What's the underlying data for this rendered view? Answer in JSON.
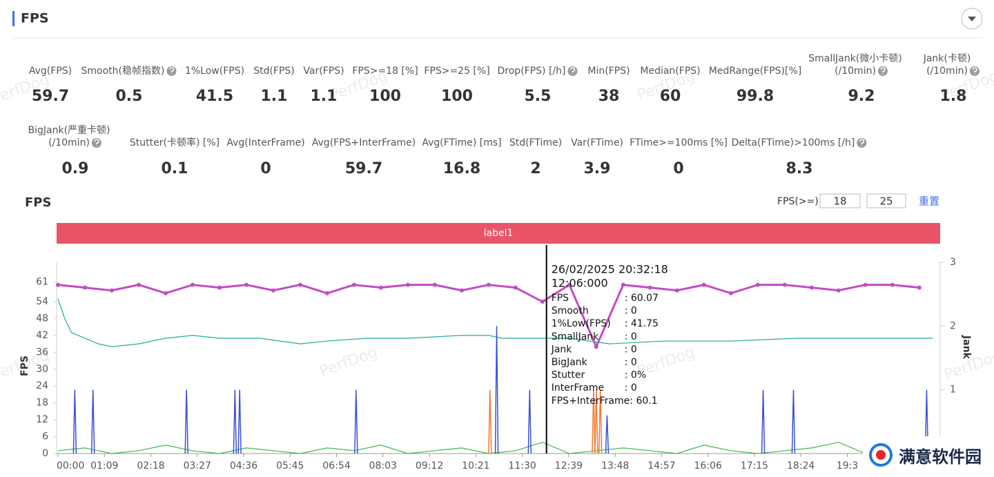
{
  "header": {
    "title": "FPS"
  },
  "watermark": "PerfDog",
  "logo": "满意软件园",
  "metrics": [
    [
      {
        "label": [
          "Avg(FPS)"
        ],
        "value": 59.7
      },
      {
        "label": [
          "Smooth(稳帧指数)"
        ],
        "value": 0.5,
        "help": true
      },
      {
        "label": [
          "1%Low(FPS)"
        ],
        "value": 41.5
      },
      {
        "label": [
          "Std(FPS)"
        ],
        "value": 1.1
      },
      {
        "label": [
          "Var(FPS)"
        ],
        "value": 1.1
      },
      {
        "label": [
          "FPS>=18 [%]"
        ],
        "value": 100
      },
      {
        "label": [
          "FPS>=25 [%]"
        ],
        "value": 100
      },
      {
        "label": [
          "Drop(FPS) [/h]"
        ],
        "value": 5.5,
        "help": true
      },
      {
        "label": [
          "Min(FPS)"
        ],
        "value": 38
      },
      {
        "label": [
          "Median(FPS)"
        ],
        "value": 60
      },
      {
        "label": [
          "MedRange(FPS)[%]"
        ],
        "value": 99.8
      },
      {
        "label": [
          "SmallJank(微小卡顿)",
          "(/10min)"
        ],
        "value": 9.2,
        "help": true
      },
      {
        "label": [
          "Jank(卡顿)",
          "(/10min)"
        ],
        "value": 1.8,
        "help": true
      }
    ],
    [
      {
        "label": [
          "BigJank(严重卡顿)",
          "(/10min)"
        ],
        "value": 0.9,
        "help": true
      },
      {
        "label": [
          "Stutter(卡顿率) [%]"
        ],
        "value": 0.1
      },
      {
        "label": [
          "Avg(InterFrame)"
        ],
        "value": 0
      },
      {
        "label": [
          "Avg(FPS+InterFrame)"
        ],
        "value": 59.7
      },
      {
        "label": [
          "Avg(FTime) [ms]"
        ],
        "value": 16.8
      },
      {
        "label": [
          "Std(FTime)"
        ],
        "value": 2
      },
      {
        "label": [
          "Var(FTime)"
        ],
        "value": 3.9
      },
      {
        "label": [
          "FTime>=100ms [%]"
        ],
        "value": 0
      },
      {
        "label": [
          "Delta(FTime)>100ms [/h]"
        ],
        "value": 8.3,
        "help": true
      }
    ]
  ],
  "chart_data": {
    "type": "line",
    "title": "FPS",
    "band_label": "label1",
    "controls": {
      "label": "FPS(>=)",
      "thresholds": [
        18,
        25
      ],
      "reset": "重置"
    },
    "ylabel": "FPS",
    "y2label": "Jank",
    "xlim": [
      0,
      1309
    ],
    "xticks": [
      {
        "value": 0,
        "label": "00:00"
      },
      {
        "value": 69,
        "label": "01:09"
      },
      {
        "value": 138,
        "label": "02:18"
      },
      {
        "value": 207,
        "label": "03:27"
      },
      {
        "value": 276,
        "label": "04:36"
      },
      {
        "value": 345,
        "label": "05:45"
      },
      {
        "value": 414,
        "label": "06:54"
      },
      {
        "value": 483,
        "label": "08:03"
      },
      {
        "value": 552,
        "label": "09:12"
      },
      {
        "value": 621,
        "label": "10:21"
      },
      {
        "value": 690,
        "label": "11:30"
      },
      {
        "value": 759,
        "label": "12:39"
      },
      {
        "value": 828,
        "label": "13:48"
      },
      {
        "value": 897,
        "label": "14:57"
      },
      {
        "value": 966,
        "label": "16:06"
      },
      {
        "value": 1035,
        "label": "17:15"
      },
      {
        "value": 1104,
        "label": "18:24"
      },
      {
        "value": 1173,
        "label": "19:3"
      }
    ],
    "ylim": [
      0,
      68
    ],
    "yticks": [
      0,
      6,
      12,
      18,
      24,
      30,
      36,
      42,
      48,
      54,
      61
    ],
    "y2lim": [
      0,
      3
    ],
    "y2ticks": [
      1,
      2,
      3
    ],
    "grid": false,
    "series": [
      {
        "color": "#c44ac4",
        "markers": true,
        "x": [
          0,
          40,
          80,
          120,
          160,
          200,
          240,
          280,
          320,
          360,
          400,
          440,
          480,
          520,
          560,
          600,
          640,
          680,
          720,
          760,
          800,
          840,
          880,
          920,
          960,
          1000,
          1040,
          1080,
          1120,
          1160,
          1200,
          1240,
          1280
        ],
        "values": [
          60,
          59,
          58,
          60,
          57,
          60,
          59,
          60,
          58,
          60,
          57,
          60,
          59,
          60,
          60,
          58,
          60,
          59,
          54,
          60,
          38,
          60,
          59,
          58,
          60,
          57,
          60,
          60,
          59,
          58,
          60,
          60,
          59
        ]
      },
      {
        "color": "#1fa99a",
        "x": [
          0,
          10,
          20,
          40,
          60,
          80,
          120,
          160,
          200,
          240,
          300,
          360,
          400,
          460,
          520,
          600,
          640,
          660,
          700,
          760,
          820,
          900,
          1000,
          1100,
          1200,
          1300
        ],
        "values": [
          55,
          48,
          43,
          41,
          39,
          38,
          39,
          41,
          42,
          41,
          41,
          39,
          40,
          41,
          41,
          42,
          42,
          41,
          41,
          41,
          39,
          40,
          40,
          41,
          41,
          41
        ]
      },
      {
        "color": "#3cb84a",
        "x": [
          0,
          40,
          80,
          120,
          160,
          200,
          240,
          280,
          320,
          360,
          400,
          440,
          480,
          520,
          560,
          600,
          640,
          680,
          720,
          760,
          800,
          840,
          880,
          920,
          960,
          1000,
          1040,
          1080,
          1120,
          1160,
          1200,
          1240,
          1280
        ],
        "values": [
          1,
          2,
          0,
          1,
          3,
          1,
          0,
          2,
          1,
          0,
          2,
          1,
          3,
          0,
          1,
          2,
          0,
          1,
          4,
          0,
          1,
          2,
          1,
          0,
          3,
          1,
          0,
          1,
          2,
          4,
          0,
          1,
          2
        ]
      },
      {
        "color": "#3a4fd8",
        "axis": "y2",
        "spikes": true,
        "x": [
          25,
          52,
          191,
          263,
          270,
          443,
          652,
          701,
          816,
          1048,
          1093,
          1291
        ],
        "values": [
          1,
          1,
          1,
          1,
          1,
          1,
          2,
          1,
          0.6,
          1,
          1,
          1
        ]
      },
      {
        "color": "#f07a30",
        "axis": "y2",
        "spikes": true,
        "x": [
          642,
          796,
          800,
          806
        ],
        "values": [
          1,
          1,
          1,
          1
        ]
      }
    ],
    "tooltip": {
      "x": 726,
      "date": "26/02/2025 20:32:18",
      "time": "12:06:000",
      "rows": [
        {
          "label": "FPS",
          "value": ": 60.07"
        },
        {
          "label": "Smooth",
          "value": ": 0"
        },
        {
          "label": "1%Low(FPS)",
          "value": ": 41.75"
        },
        {
          "label": "SmallJank",
          "value": ": 0"
        },
        {
          "label": "Jank",
          "value": ": 0"
        },
        {
          "label": "BigJank",
          "value": ": 0"
        },
        {
          "label": "Stutter",
          "value": ": 0%"
        },
        {
          "label": "InterFrame",
          "value": ": 0"
        },
        {
          "label": "FPS+InterFrame",
          "value": ": 60.1"
        }
      ]
    }
  }
}
